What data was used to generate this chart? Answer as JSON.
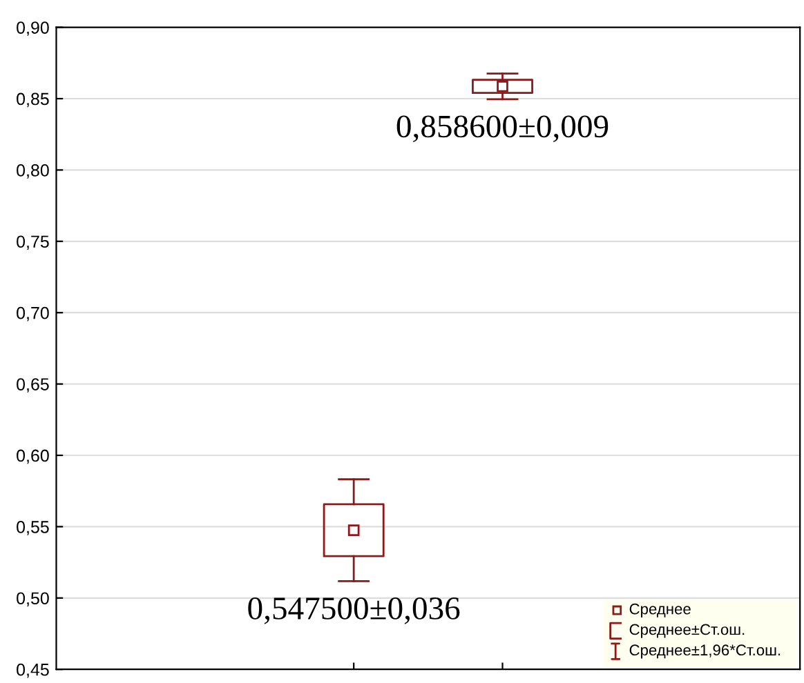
{
  "chart_data": {
    "type": "box",
    "categories": [
      null,
      null
    ],
    "series": [
      {
        "color": "#8b1a1a",
        "boxes": [
          {
            "low": 0.5118,
            "q1": 0.5293,
            "median": 0.5475,
            "q3": 0.5657,
            "high": 0.5832
          },
          {
            "low": 0.8496,
            "q1": 0.854,
            "median": 0.8586,
            "q3": 0.8632,
            "high": 0.8676
          }
        ],
        "value_labels": [
          "0,547500±0,036",
          "0,858600±0,009"
        ]
      }
    ],
    "annotations": [
      "Среднее",
      "Среднее±Ст.ош.",
      "Среднее±1,96*Ст.ош."
    ],
    "ylim": [
      0.45,
      0.9
    ],
    "yticks": [
      {
        "value": 0.45,
        "label": "0,45"
      },
      {
        "value": 0.5,
        "label": "0,50"
      },
      {
        "value": 0.55,
        "label": "0,55"
      },
      {
        "value": 0.6,
        "label": "0,60"
      },
      {
        "value": 0.65,
        "label": "0,65"
      },
      {
        "value": 0.7,
        "label": "0,70"
      },
      {
        "value": 0.75,
        "label": "0,75"
      },
      {
        "value": 0.8,
        "label": "0,80"
      },
      {
        "value": 0.85,
        "label": "0,85"
      },
      {
        "value": 0.9,
        "label": "0,90"
      }
    ],
    "grid": "y",
    "marker": "square"
  }
}
